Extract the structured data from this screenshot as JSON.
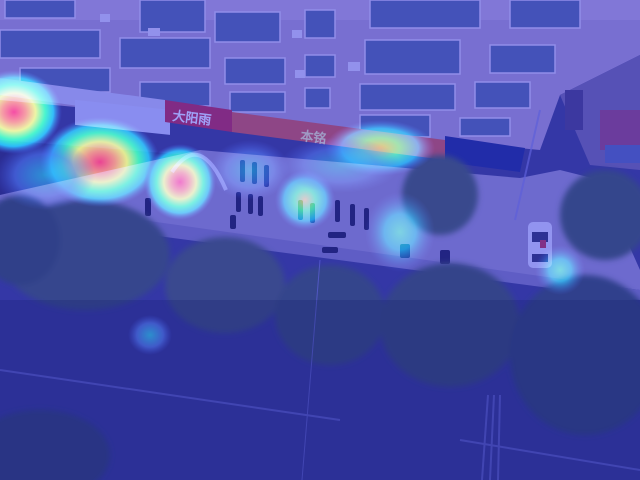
{
  "image": {
    "kind": "aerial-street-photo-with-heatmap-overlay",
    "overlay_colormap": [
      "#1e32c8",
      "#00c8ff",
      "#00ff88",
      "#ffff00",
      "#ff8000",
      "#ff0000"
    ]
  },
  "signs": {
    "shop_1": "大阳雨",
    "shop_2": "本铭"
  }
}
